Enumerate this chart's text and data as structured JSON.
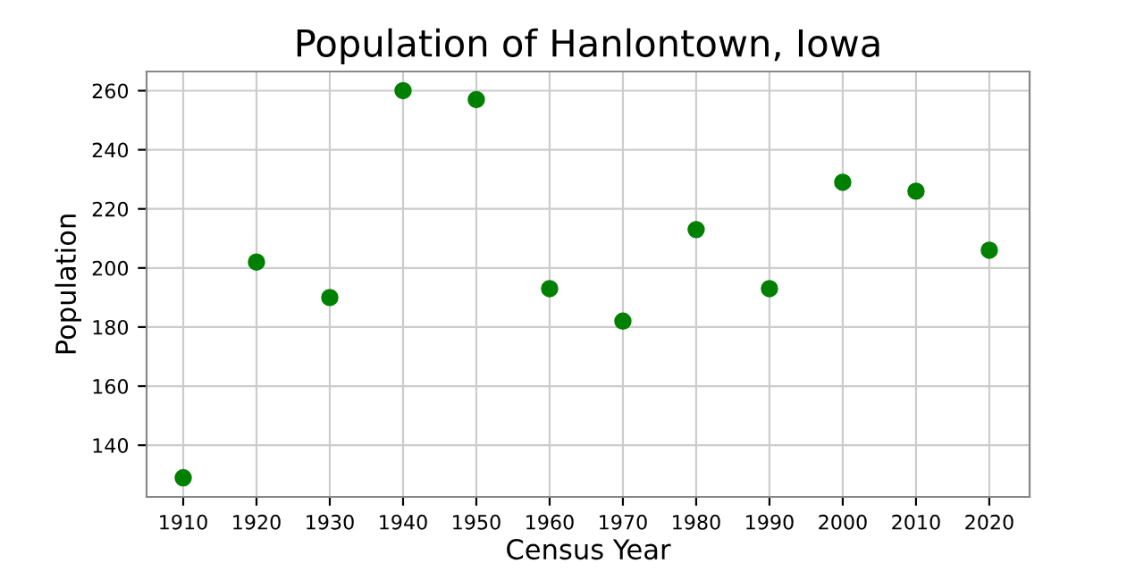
{
  "chart_data": {
    "type": "scatter",
    "title": "Population of Hanlontown, Iowa",
    "xlabel": "Census Year",
    "ylabel": "Population",
    "x": [
      1910,
      1920,
      1930,
      1940,
      1950,
      1960,
      1970,
      1980,
      1990,
      2000,
      2010,
      2020
    ],
    "series": [
      {
        "color": "#008000",
        "values": [
          129,
          202,
          190,
          260,
          257,
          193,
          182,
          213,
          193,
          229,
          226,
          206
        ]
      }
    ],
    "xlim": [
      1905,
      2025.5
    ],
    "xticks": [
      1910,
      1920,
      1930,
      1940,
      1950,
      1960,
      1970,
      1980,
      1990,
      2000,
      2010,
      2020
    ],
    "ylim": [
      122.5,
      266.5
    ],
    "yticks": [
      140,
      160,
      180,
      200,
      220,
      240,
      260
    ],
    "grid": true,
    "marker": "circle"
  }
}
